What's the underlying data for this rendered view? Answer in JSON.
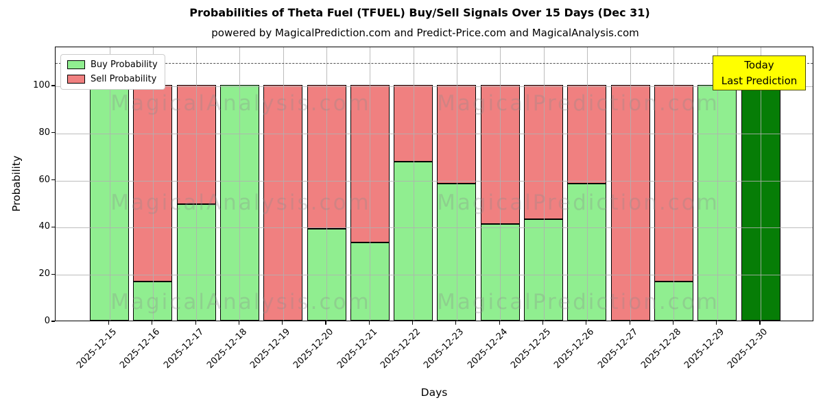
{
  "header": {
    "title": "Probabilities of Theta Fuel (TFUEL) Buy/Sell Signals Over 15 Days (Dec 31)",
    "subtitle": "powered by MagicalPrediction.com and Predict-Price.com and MagicalAnalysis.com"
  },
  "chart_data": {
    "type": "bar",
    "stacked": true,
    "title": "Probabilities of Theta Fuel (TFUEL) Buy/Sell Signals Over 15 Days (Dec 31)",
    "xlabel": "Days",
    "ylabel": "Probability",
    "ylim": [
      0,
      116.6
    ],
    "yticks": [
      0,
      20,
      40,
      60,
      80,
      100
    ],
    "grid": true,
    "legend_position": "upper left",
    "dashed_line_y": 110,
    "categories": [
      "2025-12-15",
      "2025-12-16",
      "2025-12-17",
      "2025-12-18",
      "2025-12-19",
      "2025-12-20",
      "2025-12-21",
      "2025-12-22",
      "2025-12-23",
      "2025-12-24",
      "2025-12-25",
      "2025-12-26",
      "2025-12-27",
      "2025-12-28",
      "2025-12-29",
      "2025-12-30"
    ],
    "series": [
      {
        "name": "Buy Probability",
        "color": "#90ee90",
        "values": [
          100,
          16.5,
          49.5,
          100,
          0,
          39,
          33,
          67.5,
          58,
          41,
          43,
          58,
          0,
          16.5,
          100,
          100
        ]
      },
      {
        "name": "Sell Probability",
        "color": "#f08080",
        "values": [
          0,
          83.5,
          50.5,
          0,
          100,
          61,
          67,
          32.5,
          42,
          59,
          57,
          42,
          100,
          83.5,
          0,
          0
        ]
      }
    ],
    "final_bar": {
      "category": "2025-12-30",
      "color": "#067d06",
      "note": "Today / Last Prediction"
    }
  },
  "legend": {
    "items": [
      {
        "label": "Buy Probability",
        "color": "#90ee90"
      },
      {
        "label": "Sell Probability",
        "color": "#f08080"
      }
    ]
  },
  "annotation": {
    "line1": "Today",
    "line2": "Last Prediction",
    "bg_color": "#ffff00"
  },
  "watermarks": {
    "left": "MagicalAnalysis.com",
    "right": "MagicalPrediction.com"
  }
}
